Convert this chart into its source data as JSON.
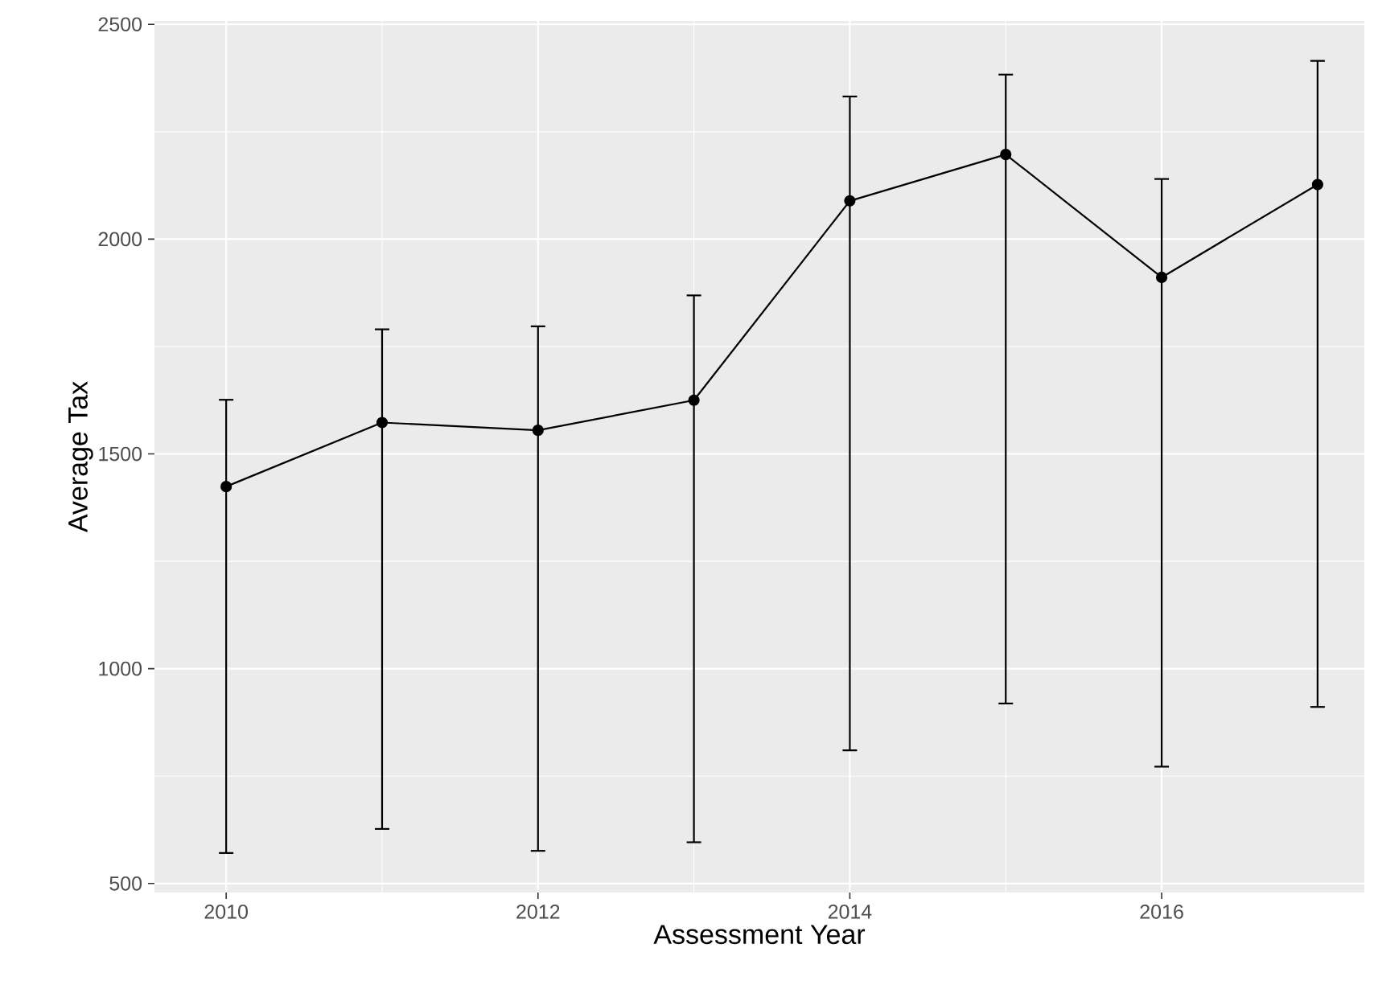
{
  "chart_data": {
    "type": "line",
    "xlabel": "Assessment Year",
    "ylabel": "Average Tax",
    "x": [
      2010,
      2011,
      2012,
      2013,
      2014,
      2015,
      2016,
      2017
    ],
    "values": [
      1424,
      1573,
      1555,
      1625,
      2089,
      2197,
      1911,
      2127
    ],
    "errors": [
      [
        571,
        1626
      ],
      [
        627,
        1790
      ],
      [
        576,
        1797
      ],
      [
        596,
        1869
      ],
      [
        810,
        2332
      ],
      [
        919,
        2383
      ],
      [
        772,
        2140
      ],
      [
        911,
        2415
      ]
    ],
    "color": "#000000",
    "marker": "circle",
    "line_style": "solid",
    "grid": true,
    "xlim": [
      2009.54,
      2017.3
    ],
    "xticks": [
      2010,
      2012,
      2014,
      2016
    ],
    "ylim": [
      479,
      2508
    ],
    "yticks": [
      500,
      1000,
      1500,
      2000,
      2500
    ]
  }
}
